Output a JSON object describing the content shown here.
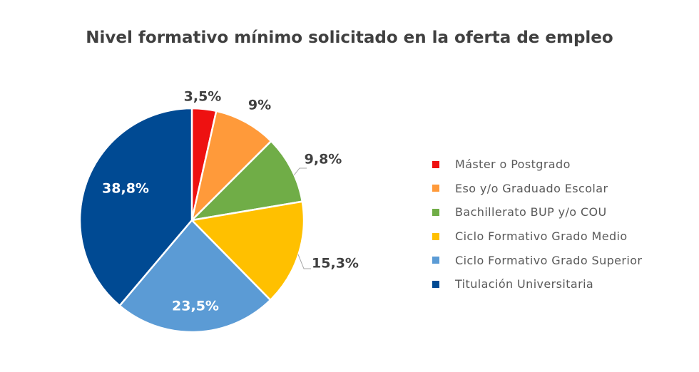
{
  "chart_data": {
    "type": "pie",
    "title": "Nivel formativo mínimo solicitado en la oferta de empleo",
    "start_angle": "12 o'clock, clockwise",
    "legend_position": "right",
    "slices": [
      {
        "name": "Máster o Postgrado",
        "value": 3.5,
        "label": "3,5%",
        "color": "#EE1111"
      },
      {
        "name": "Eso y/o Graduado Escolar",
        "value": 9.0,
        "label": "9%",
        "color": "#FF9A3A"
      },
      {
        "name": "Bachillerato BUP y/o COU",
        "value": 9.8,
        "label": "9,8%",
        "color": "#70AD47"
      },
      {
        "name": "Ciclo Formativo Grado Medio",
        "value": 15.3,
        "label": "15,3%",
        "color": "#FFC000"
      },
      {
        "name": "Ciclo Formativo Grado Superior",
        "value": 23.5,
        "label": "23,5%",
        "color": "#5B9BD5"
      },
      {
        "name": "Titulación Universitaria",
        "value": 38.8,
        "label": "38,8%",
        "color": "#004A93"
      }
    ]
  }
}
